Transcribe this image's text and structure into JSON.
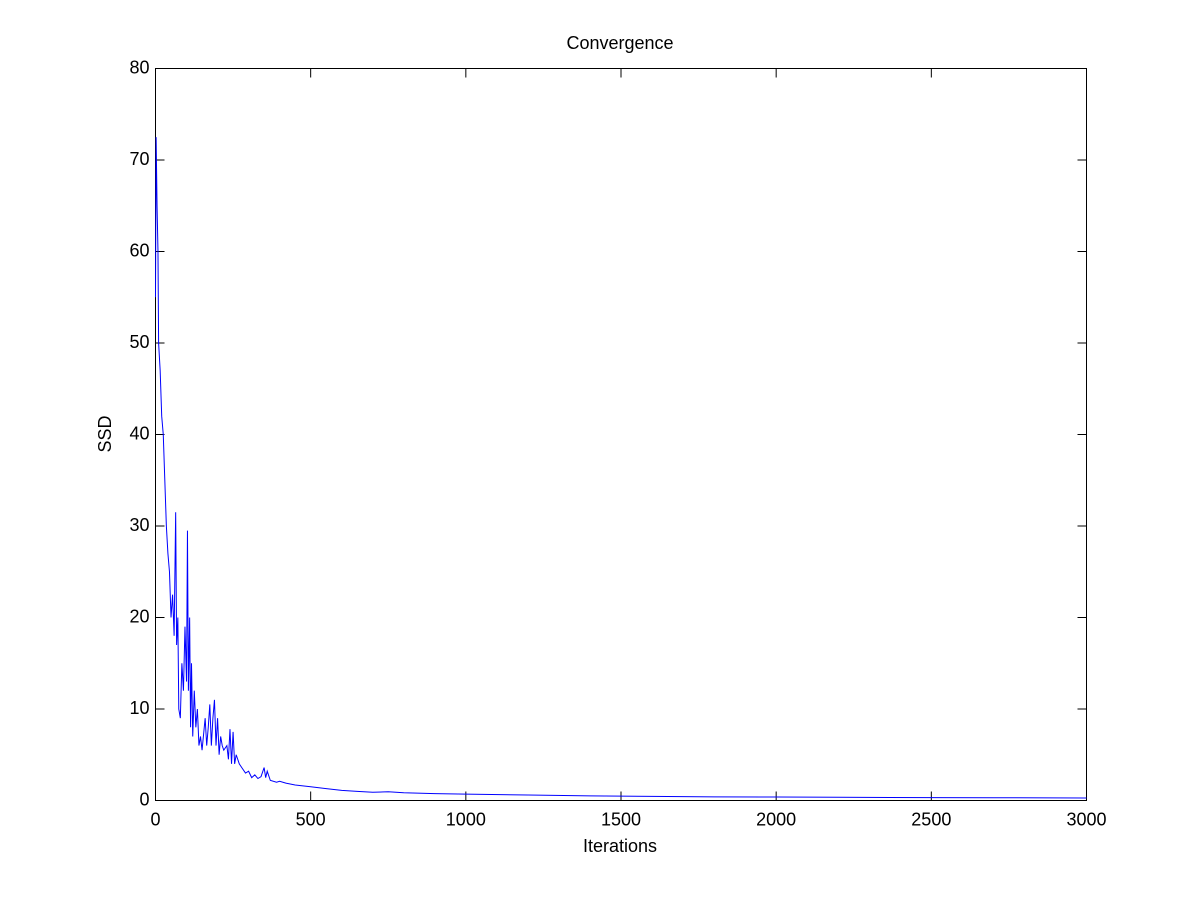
{
  "chart_data": {
    "type": "line",
    "title": "Convergence",
    "xlabel": "Iterations",
    "ylabel": "SSD",
    "x": [
      0,
      2,
      5,
      8,
      10,
      15,
      20,
      25,
      30,
      35,
      40,
      45,
      50,
      55,
      60,
      65,
      68,
      72,
      75,
      80,
      85,
      90,
      95,
      100,
      103,
      106,
      110,
      113,
      116,
      120,
      125,
      130,
      135,
      140,
      145,
      150,
      160,
      165,
      170,
      175,
      180,
      185,
      190,
      195,
      200,
      205,
      210,
      215,
      220,
      230,
      235,
      240,
      245,
      250,
      255,
      260,
      270,
      280,
      290,
      300,
      310,
      320,
      330,
      340,
      350,
      355,
      360,
      370,
      390,
      400,
      420,
      450,
      500,
      550,
      600,
      650,
      700,
      750,
      800,
      900,
      1000,
      1200,
      1400,
      1600,
      1800,
      2000,
      2200,
      2500,
      2700,
      3000
    ],
    "series": [
      {
        "name": "SSD",
        "color": "#0000ff",
        "values": [
          55,
          72.5,
          65,
          60,
          50,
          47,
          42,
          40,
          35,
          30,
          27,
          25,
          20,
          22.5,
          18,
          31.5,
          17,
          20,
          10,
          9,
          15,
          12,
          19,
          13,
          29.5,
          12,
          20,
          8,
          15,
          7,
          12,
          8,
          10,
          6,
          7,
          5.5,
          9,
          6,
          8,
          10.5,
          6,
          9,
          11,
          6,
          9,
          5,
          7,
          6,
          5.5,
          6,
          4.5,
          7.8,
          4,
          7.5,
          4,
          5,
          4,
          3.5,
          3,
          3.2,
          2.5,
          2.8,
          2.4,
          2.6,
          3.6,
          2.5,
          3.2,
          2.2,
          2,
          2.1,
          1.9,
          1.7,
          1.5,
          1.3,
          1.1,
          1,
          0.9,
          0.95,
          0.85,
          0.75,
          0.7,
          0.6,
          0.5,
          0.45,
          0.4,
          0.38,
          0.35,
          0.32,
          0.3,
          0.28
        ]
      }
    ],
    "xlim": [
      0,
      3000
    ],
    "xticks": [
      0,
      500,
      1000,
      1500,
      2000,
      2500,
      3000
    ],
    "ylim": [
      0,
      80
    ],
    "yticks": [
      0,
      10,
      20,
      30,
      40,
      50,
      60,
      70,
      80
    ]
  }
}
